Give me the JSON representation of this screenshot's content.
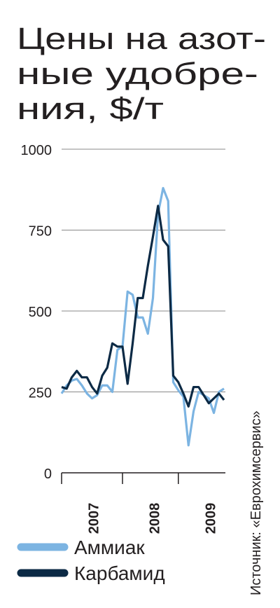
{
  "chart_data": {
    "type": "line",
    "title": [
      "Цены на азот-",
      "ные удобре-",
      "ния, $/т"
    ],
    "source": "Источник: «Еврохимсервис»",
    "categories": [
      null,
      null,
      null,
      null,
      null,
      null,
      "2007",
      null,
      null,
      null,
      null,
      null,
      null,
      null,
      null,
      null,
      null,
      null,
      "2008",
      null,
      null,
      null,
      null,
      null,
      null,
      null,
      null,
      null,
      null,
      "2009",
      null,
      null,
      null
    ],
    "series": [
      {
        "name": "Аммиак",
        "color": "#7cb4e2",
        "values": [
          245,
          270,
          285,
          290,
          270,
          245,
          230,
          240,
          270,
          270,
          250,
          380,
          390,
          560,
          550,
          480,
          480,
          430,
          540,
          800,
          880,
          840,
          280,
          255,
          235,
          85,
          190,
          250,
          240,
          230,
          185,
          250,
          260
        ]
      },
      {
        "name": "Карбамид",
        "color": "#0c2a45",
        "values": [
          265,
          260,
          295,
          315,
          295,
          295,
          265,
          245,
          300,
          325,
          400,
          390,
          390,
          275,
          400,
          540,
          540,
          640,
          730,
          825,
          720,
          700,
          300,
          280,
          245,
          205,
          265,
          265,
          240,
          215,
          230,
          245,
          225
        ]
      }
    ],
    "ylim": [
      0,
      1000
    ],
    "yticks": [
      0,
      250,
      500,
      750,
      1000
    ],
    "grid": true
  }
}
